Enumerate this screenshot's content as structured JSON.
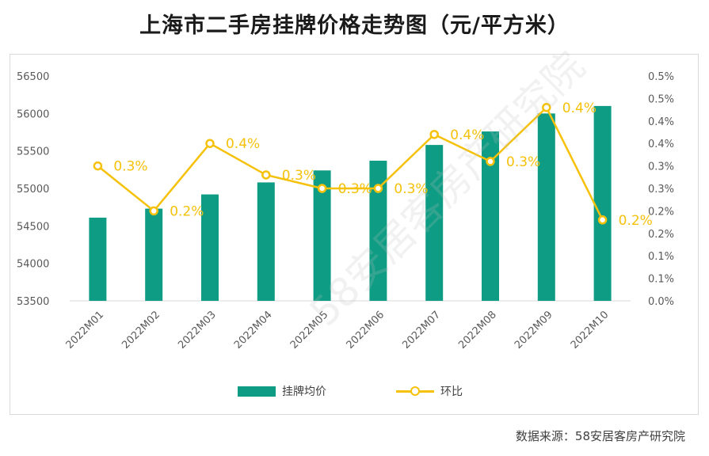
{
  "title": "上海市二手房挂牌价格走势图（元/平方米）",
  "source": "数据来源：58安居客房产研究院",
  "watermark": "58安居客房产研究院",
  "colors": {
    "bar": "#0e9d84",
    "line": "#f5c10a",
    "axis_text": "#595959",
    "gridline": "#d9d9d9"
  },
  "chart_data": {
    "type": "bar",
    "title": "上海市二手房挂牌价格走势图（元/平方米）",
    "categories": [
      "2022M01",
      "2022M02",
      "2022M03",
      "2022M04",
      "2022M05",
      "2022M06",
      "2022M07",
      "2022M08",
      "2022M09",
      "2022M10"
    ],
    "series": [
      {
        "name": "挂牌均价",
        "type": "bar",
        "axis": "left",
        "values": [
          54610,
          54730,
          54920,
          55080,
          55240,
          55370,
          55580,
          55760,
          56000,
          56100
        ]
      },
      {
        "name": "环比",
        "type": "line",
        "axis": "right",
        "values": [
          0.3,
          0.2,
          0.35,
          0.28,
          0.25,
          0.25,
          0.37,
          0.31,
          0.43,
          0.18
        ],
        "labels": [
          "0.3%",
          "0.2%",
          "0.4%",
          "0.3%",
          "0.3%",
          "0.3%",
          "0.4%",
          "0.3%",
          "0.4%",
          "0.2%"
        ]
      }
    ],
    "y_left": {
      "min": 53500,
      "max": 56500,
      "step": 500,
      "ticks": [
        "53500",
        "54000",
        "54500",
        "55000",
        "55500",
        "56000",
        "56500"
      ]
    },
    "y_right": {
      "min": 0,
      "max": 0.5,
      "step": 0.05,
      "ticks": [
        "0.0%",
        "0.1%",
        "0.1%",
        "0.2%",
        "0.2%",
        "0.3%",
        "0.3%",
        "0.4%",
        "0.4%",
        "0.5%",
        "0.5%"
      ]
    },
    "legend": [
      "挂牌均价",
      "环比"
    ],
    "legend_position": "bottom"
  }
}
